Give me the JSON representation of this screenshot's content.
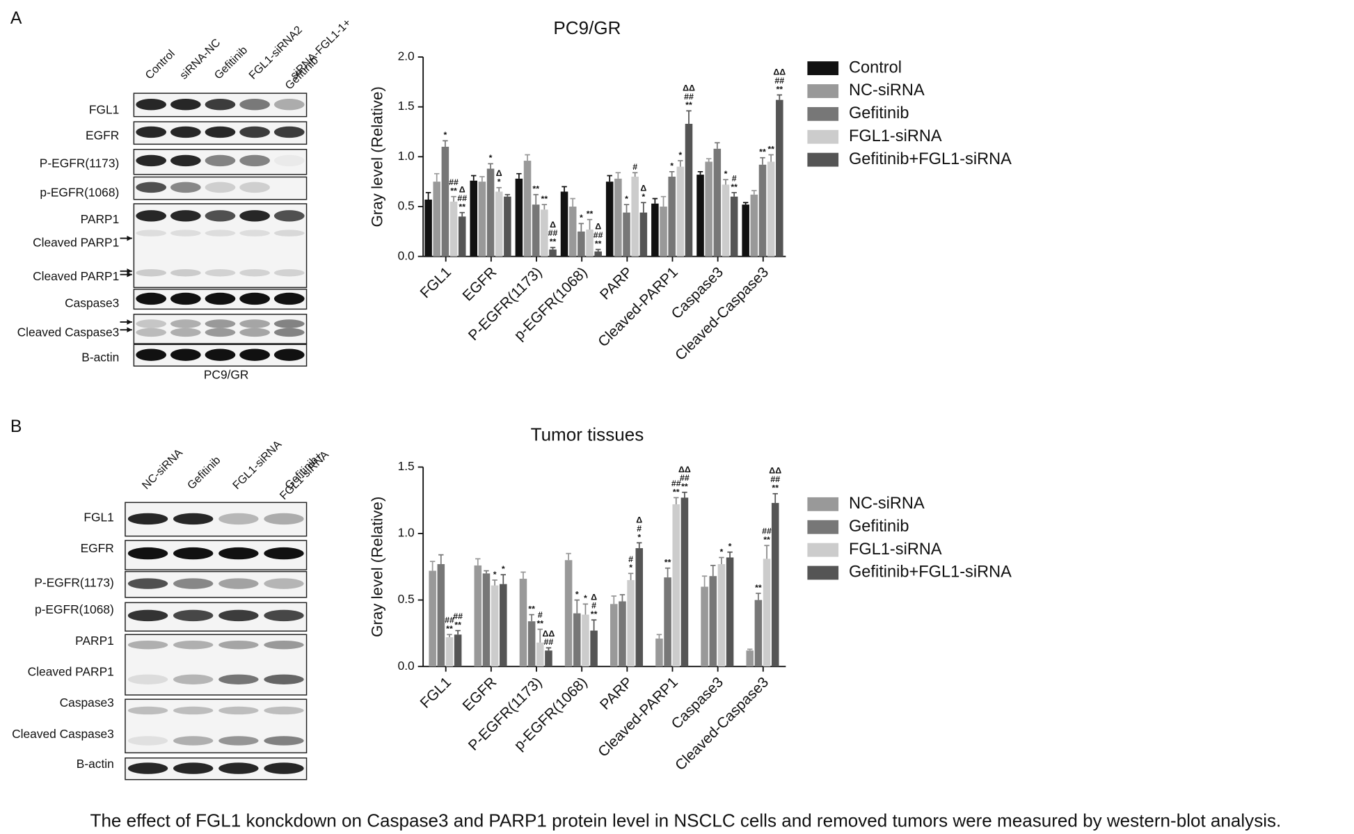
{
  "blots": [
    {
      "letter": "A",
      "lanes": [
        [
          "Control"
        ],
        [
          "siRNA-NC"
        ],
        [
          "Gefitinib"
        ],
        [
          "FGL1-siRNA2"
        ],
        [
          "siRNA-FGL1-1+",
          "Gefitinib"
        ]
      ],
      "rows": [
        "FGL1",
        "EGFR",
        "P-EGFR(1173)",
        "p-EGFR(1068)",
        "PARP1",
        "Cleaved PARP1",
        "Cleaved PARP1",
        "Caspase3",
        "Cleaved Caspase3",
        "B-actin"
      ],
      "cell_line": "PC9/GR"
    },
    {
      "letter": "B",
      "lanes": [
        [
          "NC-siRNA"
        ],
        [
          "Gefitinib"
        ],
        [
          "FGL1-siRNA"
        ],
        [
          "Gefitinib+",
          "FGL1-siRNA"
        ]
      ],
      "rows": [
        "FGL1",
        "EGFR",
        "P-EGFR(1173)",
        "p-EGFR(1068)",
        "PARP1",
        "Cleaved PARP1",
        "Caspase3",
        "Cleaved Caspase3",
        "B-actin"
      ]
    }
  ],
  "caption": "The effect of FGL1 konckdown on Caspase3 and PARP1 protein level in NSCLC cells and removed tumors were measured by western-blot analysis.",
  "chart_data": [
    {
      "type": "bar",
      "title": "PC9/GR",
      "y_label": "Gray level (Relative)",
      "categories": [
        "FGL1",
        "EGFR",
        "P-EGFR(1173)",
        "p-EGFR(1068)",
        "PARP",
        "Cleaved-PARP1",
        "Caspase3",
        "Cleaved-Caspase3"
      ],
      "ylim": [
        0,
        2
      ],
      "yticks": [
        {
          "value": 0,
          "label": "0.0"
        },
        {
          "value": 0.5,
          "label": "0.5"
        },
        {
          "value": 1,
          "label": "1.0"
        },
        {
          "value": 1.5,
          "label": "1.5"
        },
        {
          "value": 2,
          "label": "2.0"
        }
      ],
      "series": [
        {
          "name": "Control",
          "color": "#111111",
          "values": [
            0.57,
            0.76,
            0.78,
            0.65,
            0.75,
            0.53,
            0.82,
            0.52
          ],
          "errors": [
            0.07,
            0.05,
            0.05,
            0.05,
            0.06,
            0.05,
            0.03,
            0.02
          ],
          "sig": [
            null,
            null,
            null,
            null,
            null,
            null,
            null,
            null
          ]
        },
        {
          "name": "NC-siRNA",
          "color": "#999999",
          "values": [
            0.75,
            0.75,
            0.96,
            0.5,
            0.78,
            0.5,
            0.95,
            0.62
          ],
          "errors": [
            0.08,
            0.05,
            0.06,
            0.08,
            0.06,
            0.1,
            0.03,
            0.04
          ],
          "sig": [
            null,
            null,
            null,
            null,
            null,
            null,
            null,
            null
          ]
        },
        {
          "name": "Gefitinib",
          "color": "#777777",
          "values": [
            1.1,
            0.88,
            0.52,
            0.25,
            0.44,
            0.8,
            1.08,
            0.92
          ],
          "errors": [
            0.06,
            0.05,
            0.1,
            0.08,
            0.08,
            0.05,
            0.06,
            0.07
          ],
          "sig": [
            [
              "*"
            ],
            [
              "*"
            ],
            [
              "**"
            ],
            [
              "*"
            ],
            [
              "*"
            ],
            [
              "*"
            ],
            null,
            [
              "**"
            ]
          ]
        },
        {
          "name": "FGL1-siRNA",
          "color": "#cccccc",
          "values": [
            0.55,
            0.65,
            0.47,
            0.27,
            0.8,
            0.9,
            0.72,
            0.95
          ],
          "errors": [
            0.05,
            0.04,
            0.05,
            0.1,
            0.04,
            0.06,
            0.05,
            0.07
          ],
          "sig": [
            [
              "**",
              "##"
            ],
            [
              "*",
              "Δ"
            ],
            [
              "**"
            ],
            [
              "**"
            ],
            [
              "#"
            ],
            [
              "*"
            ],
            [
              "*"
            ],
            [
              "**"
            ]
          ]
        },
        {
          "name": "Gefitinib+FGL1-siRNA",
          "color": "#555555",
          "values": [
            0.4,
            0.6,
            0.07,
            0.05,
            0.44,
            1.33,
            0.6,
            1.57
          ],
          "errors": [
            0.04,
            0.02,
            0.02,
            0.02,
            0.1,
            0.13,
            0.04,
            0.05
          ],
          "sig": [
            [
              "**",
              "##",
              "Δ"
            ],
            null,
            [
              "**",
              "##",
              "Δ"
            ],
            [
              "**",
              "##",
              "Δ"
            ],
            [
              "*",
              "Δ"
            ],
            [
              "**",
              "##",
              "ΔΔ"
            ],
            [
              "**",
              "#"
            ],
            [
              "**",
              "##",
              "ΔΔ"
            ]
          ]
        }
      ]
    },
    {
      "type": "bar",
      "title": "Tumor tissues",
      "y_label": "Gray level (Relative)",
      "categories": [
        "FGL1",
        "EGFR",
        "P-EGFR(1173)",
        "p-EGFR(1068)",
        "PARP",
        "Cleaved-PARP1",
        "Caspase3",
        "Cleaved-Caspase3"
      ],
      "ylim": [
        0,
        1.5
      ],
      "yticks": [
        {
          "value": 0,
          "label": "0.0"
        },
        {
          "value": 0.5,
          "label": "0.5"
        },
        {
          "value": 1,
          "label": "1.0"
        },
        {
          "value": 1.5,
          "label": "1.5"
        }
      ],
      "series": [
        {
          "name": "NC-siRNA",
          "color": "#999999",
          "values": [
            0.72,
            0.76,
            0.66,
            0.8,
            0.47,
            0.21,
            0.6,
            0.12
          ],
          "errors": [
            0.07,
            0.05,
            0.05,
            0.05,
            0.06,
            0.03,
            0.08,
            0.01
          ],
          "sig": [
            null,
            null,
            null,
            null,
            null,
            null,
            null,
            null
          ]
        },
        {
          "name": "Gefitinib",
          "color": "#777777",
          "values": [
            0.77,
            0.7,
            0.34,
            0.4,
            0.49,
            0.67,
            0.68,
            0.5
          ],
          "errors": [
            0.07,
            0.02,
            0.05,
            0.1,
            0.05,
            0.07,
            0.08,
            0.05
          ],
          "sig": [
            null,
            null,
            [
              "**"
            ],
            [
              "*"
            ],
            null,
            [
              "**"
            ],
            null,
            [
              "**"
            ]
          ]
        },
        {
          "name": "FGL1-siRNA",
          "color": "#cccccc",
          "values": [
            0.22,
            0.61,
            0.18,
            0.39,
            0.65,
            1.22,
            0.77,
            0.81
          ],
          "errors": [
            0.02,
            0.04,
            0.1,
            0.08,
            0.05,
            0.05,
            0.05,
            0.1
          ],
          "sig": [
            [
              "**",
              "##"
            ],
            [
              "*"
            ],
            [
              "**",
              "#"
            ],
            [
              "*"
            ],
            [
              "*",
              "#"
            ],
            [
              "**",
              "##"
            ],
            [
              "*"
            ],
            [
              "**",
              "##"
            ]
          ]
        },
        {
          "name": "Gefitinib+FGL1-siRNA",
          "color": "#555555",
          "values": [
            0.24,
            0.62,
            0.12,
            0.27,
            0.89,
            1.27,
            0.82,
            1.23
          ],
          "errors": [
            0.03,
            0.07,
            0.02,
            0.08,
            0.04,
            0.04,
            0.04,
            0.07
          ],
          "sig": [
            [
              "**",
              "##"
            ],
            [
              "*"
            ],
            [
              "##",
              "ΔΔ"
            ],
            [
              "**",
              "#",
              "Δ"
            ],
            [
              "*",
              "#",
              "Δ"
            ],
            [
              "**",
              "##",
              "ΔΔ"
            ],
            [
              "*"
            ],
            [
              "**",
              "##",
              "ΔΔ"
            ]
          ]
        }
      ]
    }
  ]
}
